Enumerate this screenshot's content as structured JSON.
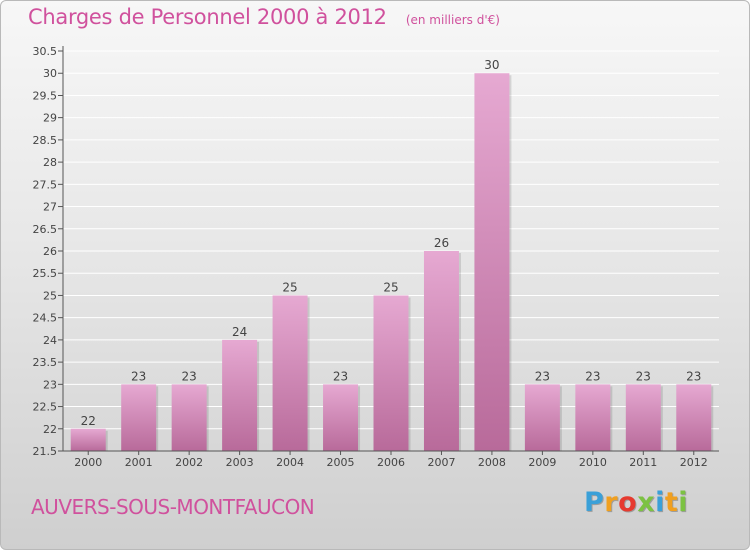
{
  "title": "Charges de Personnel 2000 à 2012",
  "unit": "(en milliers d'€)",
  "commune": "AUVERS-SOUS-MONTFAUCON",
  "brand": {
    "text": "Proxiti",
    "colors": [
      "#3aa0d8",
      "#f0a020",
      "#e63a2f",
      "#7cc242",
      "#3aa0d8",
      "#f0a020",
      "#7cc242"
    ]
  },
  "colors": {
    "title": "#d0519d",
    "bar_top": "#e6a9d2",
    "bar_bottom": "#b86a9a",
    "grid": "#ffffff"
  },
  "chart_data": {
    "type": "bar",
    "categories": [
      "2000",
      "2001",
      "2002",
      "2003",
      "2004",
      "2005",
      "2006",
      "2007",
      "2008",
      "2009",
      "2010",
      "2011",
      "2012"
    ],
    "values": [
      22,
      23,
      23,
      24,
      25,
      23,
      25,
      26,
      30,
      23,
      23,
      23,
      23
    ],
    "ylim": [
      21.5,
      30.5
    ],
    "yticks": [
      "21.5",
      "22",
      "22.5",
      "23",
      "23.5",
      "24",
      "24.5",
      "25",
      "25.5",
      "26",
      "26.5",
      "27",
      "27.5",
      "28",
      "28.5",
      "29",
      "29.5",
      "30",
      "30.5"
    ],
    "grid": true
  }
}
